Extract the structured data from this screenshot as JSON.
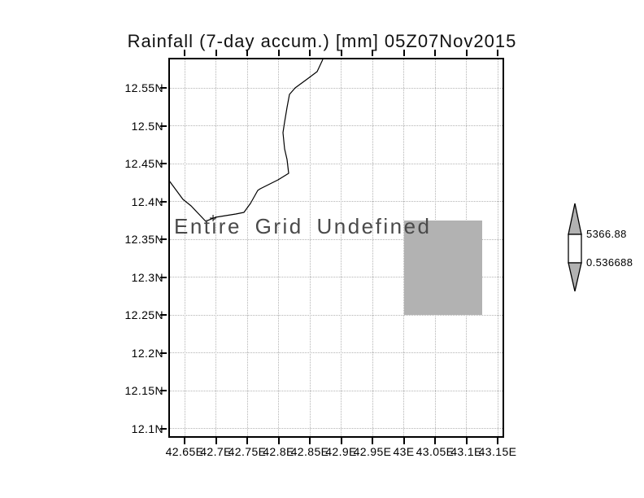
{
  "title": "Rainfall (7-day accum.) [mm] 05Z07Nov2015",
  "annotation": "Entire Grid Undefined",
  "axes": {
    "x_tick_labels": [
      "42.65E",
      "42.7E",
      "42.75E",
      "42.8E",
      "42.85E",
      "42.9E",
      "42.95E",
      "43E",
      "43.05E",
      "43.1E",
      "43.15E"
    ],
    "y_tick_labels": [
      "12.55N",
      "12.5N",
      "12.45N",
      "12.4N",
      "12.35N",
      "12.3N",
      "12.25N",
      "12.2N",
      "12.15N",
      "12.1N"
    ]
  },
  "colorbar": {
    "upper_label": "5366.88",
    "lower_label": "0.536688",
    "arrow_fill": "#b2b2b2",
    "mid_fill": "#ffffff"
  },
  "colors": {
    "shade_gray": "#b2b2b2",
    "grid": "#b4b4b4",
    "frame": "#000000",
    "annotation_text": "#4a4a4a",
    "coastline": "#000000"
  },
  "chart_data": {
    "type": "map",
    "title": "Rainfall (7-day accum.) [mm] 05Z07Nov2015",
    "variable": "Rainfall (7-day accum.) [mm]",
    "timestamp": "05Z07Nov2015",
    "status": "Entire Grid Undefined",
    "lon_ticks": [
      42.65,
      42.7,
      42.75,
      42.8,
      42.85,
      42.9,
      42.95,
      43.0,
      43.05,
      43.1,
      43.15
    ],
    "lat_ticks": [
      12.55,
      12.5,
      12.45,
      12.4,
      12.35,
      12.3,
      12.25,
      12.2,
      12.15,
      12.1
    ],
    "lon_range": [
      42.624,
      43.16
    ],
    "lat_range": [
      12.088,
      12.59
    ],
    "grid": true,
    "legend_position": "right",
    "colorbar_levels": [
      0.536688,
      5366.88
    ],
    "shaded_region": {
      "lon": [
        43.0,
        43.125
      ],
      "lat": [
        12.25,
        12.375
      ]
    },
    "coastline": [
      [
        42.8708,
        12.5876
      ],
      [
        42.8617,
        12.5715
      ],
      [
        42.8461,
        12.5618
      ],
      [
        42.8266,
        12.55
      ],
      [
        42.8175,
        12.5414
      ],
      [
        42.8136,
        12.5242
      ],
      [
        42.8097,
        12.5049
      ],
      [
        42.8071,
        12.4909
      ],
      [
        42.8097,
        12.4694
      ],
      [
        42.8136,
        12.4555
      ],
      [
        42.8162,
        12.4372
      ],
      [
        42.7994,
        12.4286
      ],
      [
        42.7708,
        12.4168
      ],
      [
        42.7669,
        12.4147
      ],
      [
        42.7552,
        12.3975
      ],
      [
        42.7448,
        12.3857
      ],
      [
        42.7318,
        12.3835
      ],
      [
        42.6994,
        12.3792
      ],
      [
        42.6838,
        12.3738
      ],
      [
        42.6604,
        12.3942
      ],
      [
        42.6474,
        12.4028
      ],
      [
        42.6253,
        12.4275
      ]
    ],
    "marker": {
      "type": "plus",
      "lon": 42.6955,
      "lat": 12.3781
    }
  }
}
